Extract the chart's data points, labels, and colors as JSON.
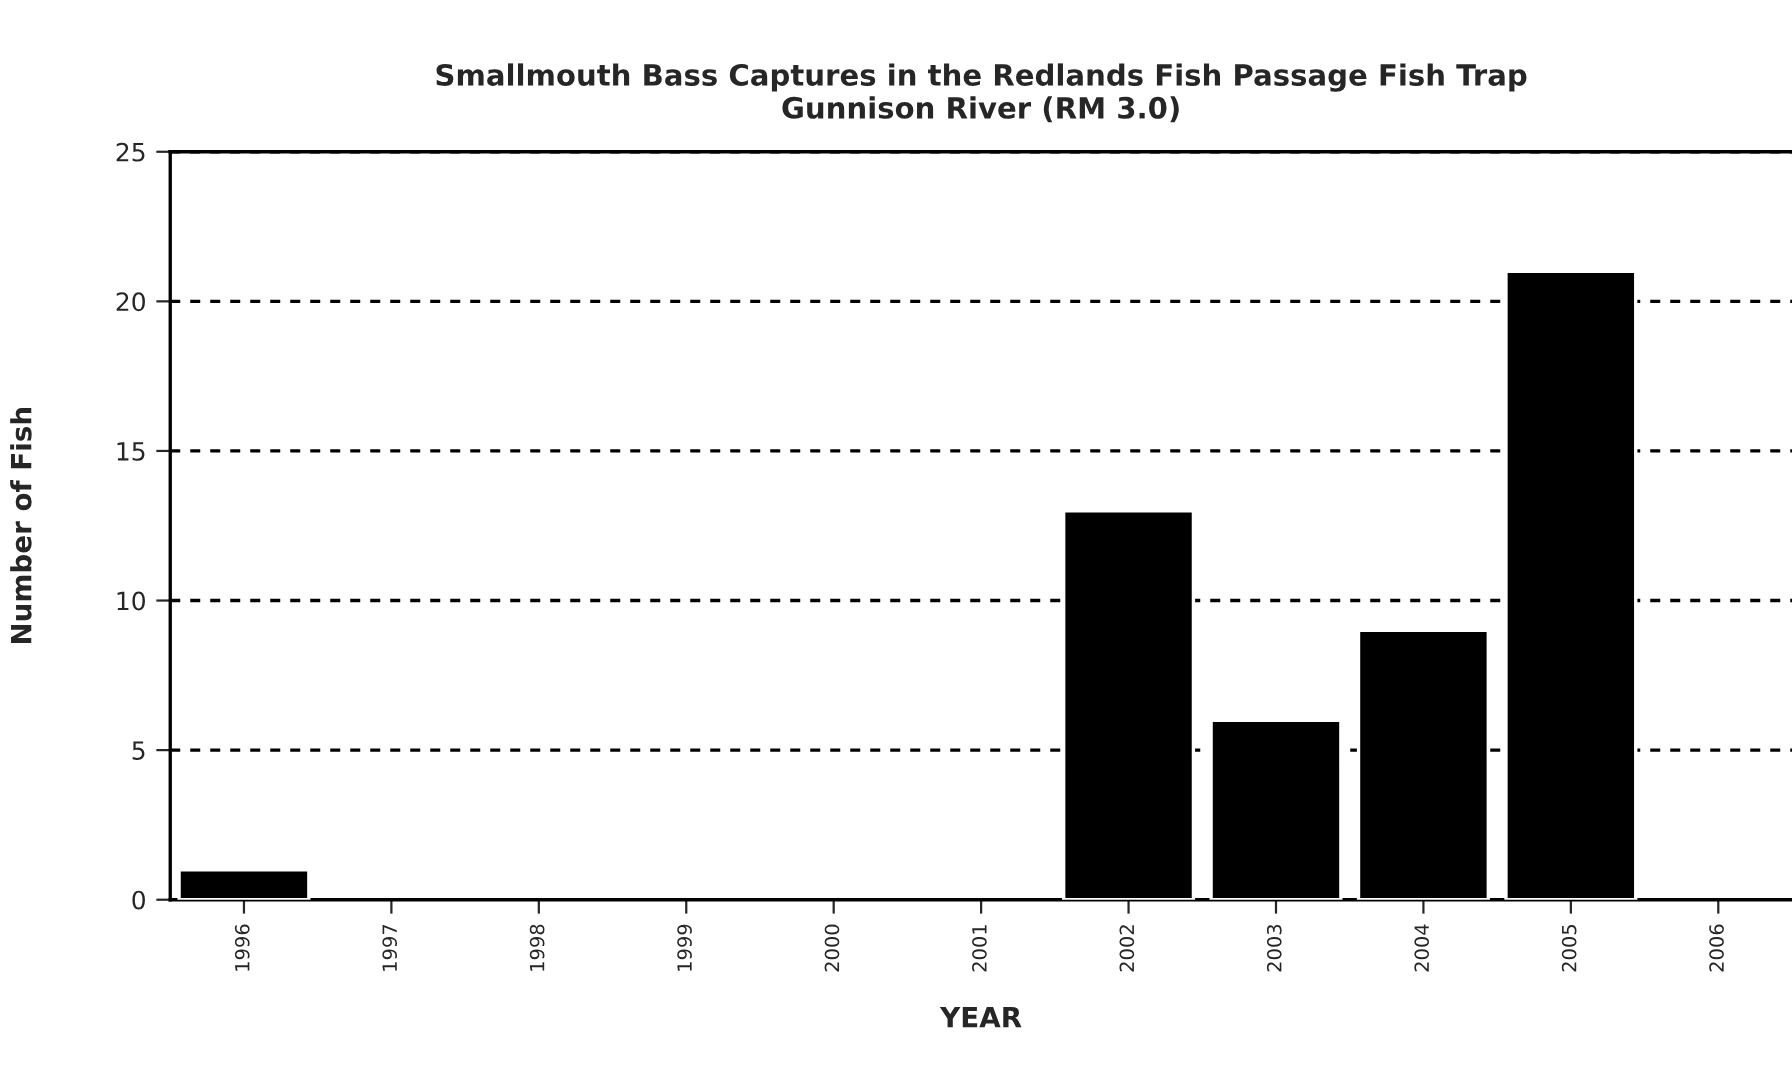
{
  "chart_data": {
    "type": "bar",
    "title": "Smallmouth Bass Captures in the Redlands Fish Passage Fish Trap\nGunnison River (RM 3.0)",
    "xlabel": "YEAR",
    "ylabel": "Number of Fish",
    "categories": [
      "1996",
      "1997",
      "1998",
      "1999",
      "2000",
      "2001",
      "2002",
      "2003",
      "2004",
      "2005",
      "2006"
    ],
    "values": [
      1,
      0,
      0,
      0,
      0,
      0,
      13,
      6,
      9,
      21,
      0
    ],
    "color": "#000000",
    "ylim": [
      0,
      25
    ],
    "yticks": [
      0,
      5,
      10,
      15,
      20,
      25
    ],
    "grid": "y",
    "line_style": "dashed"
  }
}
